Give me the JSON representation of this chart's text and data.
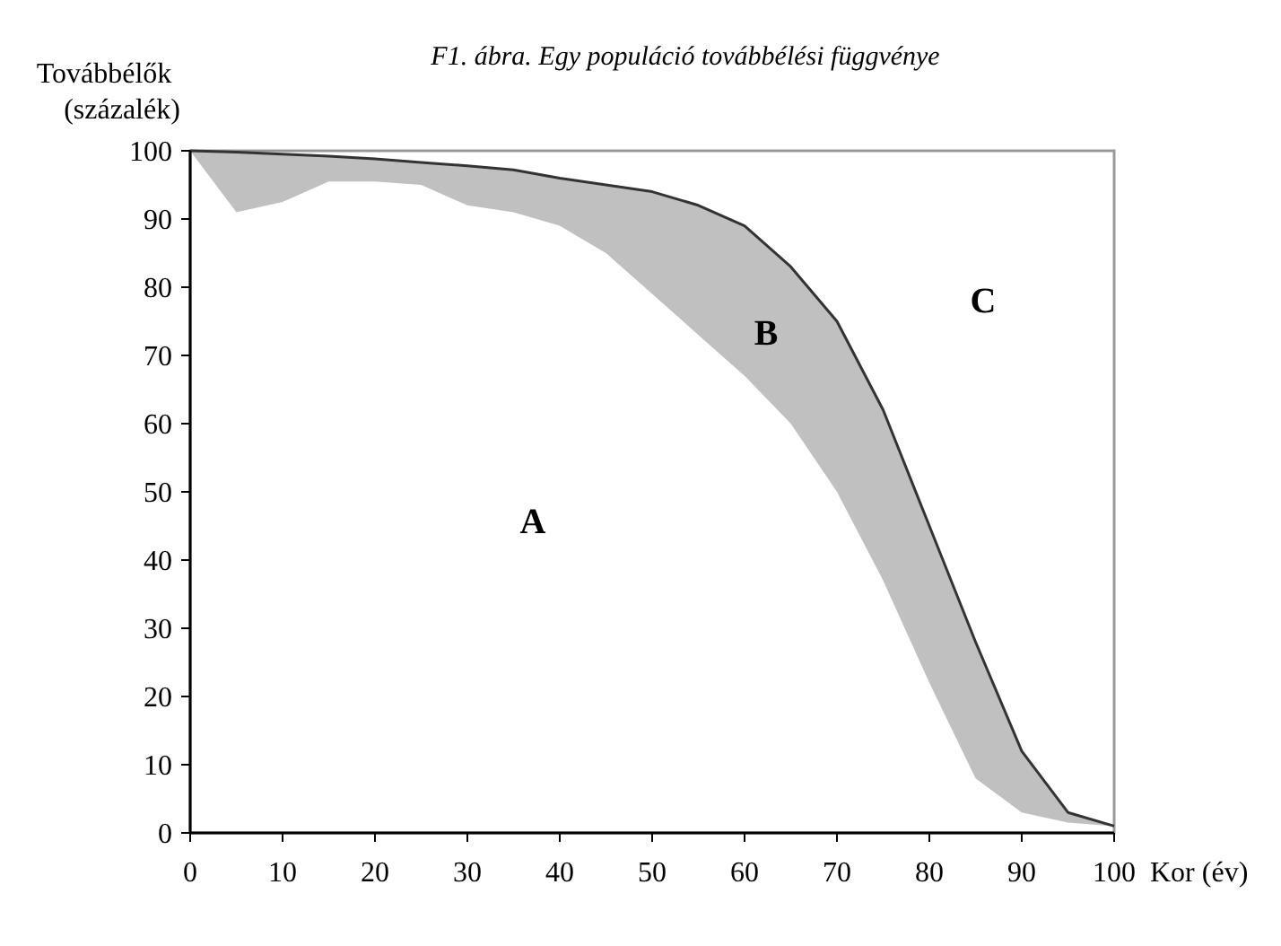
{
  "chart_data": {
    "type": "line",
    "title": "F1. ábra. Egy populáció továbbélési függvénye",
    "xlabel": "Kor (év)",
    "ylabel": "Továbbélők\n(százalék)",
    "x": [
      0,
      5,
      10,
      15,
      20,
      25,
      30,
      35,
      40,
      45,
      50,
      55,
      60,
      65,
      70,
      75,
      80,
      85,
      90,
      95,
      100
    ],
    "series": [
      {
        "color": "#333333",
        "values": [
          100,
          99.8,
          99.5,
          99.2,
          98.8,
          98.3,
          97.8,
          97.2,
          96,
          95,
          94,
          92,
          89,
          83,
          75,
          62,
          45,
          28,
          12,
          3,
          1
        ],
        "lower": [
          100,
          91,
          92.5,
          95.5,
          95.5,
          95,
          92,
          91,
          89,
          85,
          79,
          73,
          67,
          60,
          50,
          37,
          22,
          8,
          3,
          1.5,
          1
        ],
        "upper": [
          100,
          99.8,
          99.5,
          99.2,
          98.8,
          98.3,
          97.8,
          97.2,
          96,
          95,
          94,
          92,
          89,
          83,
          75,
          62,
          45,
          28,
          12,
          3,
          1
        ]
      }
    ],
    "xlim": [
      0,
      100
    ],
    "ylim": [
      0,
      100
    ],
    "xticks": [
      0,
      10,
      20,
      30,
      40,
      50,
      60,
      70,
      80,
      90,
      100
    ],
    "yticks": [
      0,
      10,
      20,
      30,
      40,
      50,
      60,
      70,
      80,
      90,
      100
    ],
    "grid": false,
    "marker": "none",
    "line_style": "solid",
    "annotations": [
      "A",
      "B",
      "C"
    ]
  }
}
